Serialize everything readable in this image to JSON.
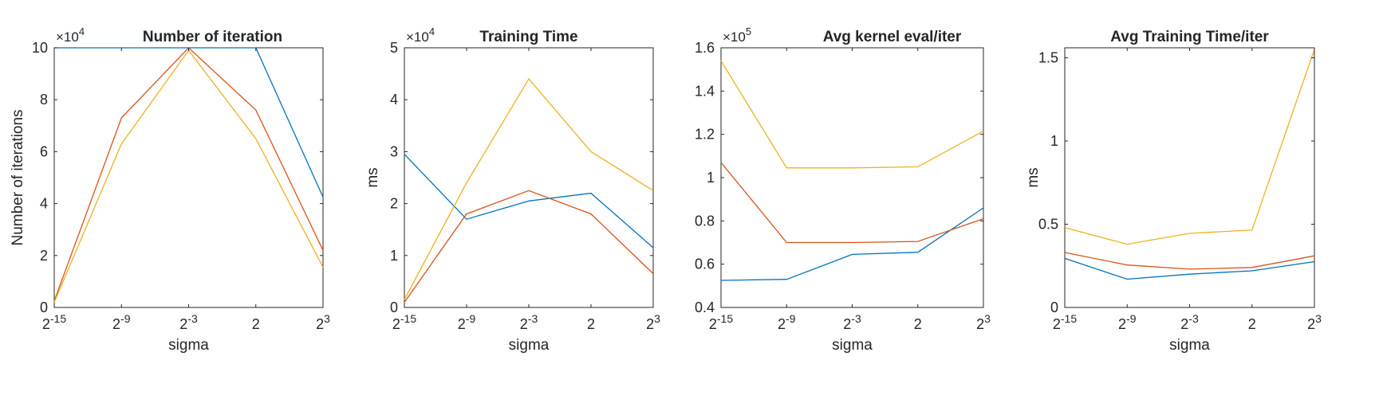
{
  "figure": {
    "colors": {
      "series1": "#0072BD",
      "series2": "#D95319",
      "series3": "#EDB120",
      "axis": "#262626",
      "background": "#ffffff"
    }
  },
  "chart_data": [
    {
      "type": "line",
      "title": "Number of iteration",
      "xlabel": "sigma",
      "ylabel": "Number of iterations",
      "x_ticks": [
        "2^-15",
        "2^-9",
        "2^-3",
        "2",
        "2^3"
      ],
      "x_tick_labels": [
        "2",
        "2",
        "2",
        "2",
        "2"
      ],
      "x_tick_exponents": [
        "-15",
        "-9",
        "-3",
        "",
        "3"
      ],
      "y_tick_labels": [
        "0",
        "2",
        "4",
        "6",
        "8",
        "10"
      ],
      "y_multiplier": {
        "base": "×10",
        "exponent": "4"
      },
      "ylim": [
        0,
        100000
      ],
      "y_ticks": [
        0,
        20000,
        40000,
        60000,
        80000,
        100000
      ],
      "series": [
        {
          "values": [
            100000,
            100000,
            100000,
            100000,
            42500
          ]
        },
        {
          "values": [
            2500,
            73000,
            100000,
            76000,
            22000
          ]
        },
        {
          "values": [
            2000,
            63000,
            99000,
            65000,
            15500
          ]
        }
      ]
    },
    {
      "type": "line",
      "title": "Training Time",
      "xlabel": "sigma",
      "ylabel": "ms",
      "x_ticks": [
        "2^-15",
        "2^-9",
        "2^-3",
        "2",
        "2^3"
      ],
      "x_tick_labels": [
        "2",
        "2",
        "2",
        "2",
        "2"
      ],
      "x_tick_exponents": [
        "-15",
        "-9",
        "-3",
        "",
        "3"
      ],
      "y_tick_labels": [
        "0",
        "1",
        "2",
        "3",
        "4",
        "5"
      ],
      "y_multiplier": {
        "base": "×10",
        "exponent": "4"
      },
      "ylim": [
        0,
        50000
      ],
      "y_ticks": [
        0,
        10000,
        20000,
        30000,
        40000,
        50000
      ],
      "series": [
        {
          "values": [
            29500,
            17000,
            20500,
            22000,
            11500
          ]
        },
        {
          "values": [
            1000,
            18000,
            22500,
            18000,
            6500
          ]
        },
        {
          "values": [
            1500,
            24000,
            44000,
            30000,
            22500
          ]
        }
      ]
    },
    {
      "type": "line",
      "title": "Avg kernel eval/iter",
      "xlabel": "sigma",
      "ylabel": "",
      "x_ticks": [
        "2^-15",
        "2^-9",
        "2^-3",
        "2",
        "2^3"
      ],
      "x_tick_labels": [
        "2",
        "2",
        "2",
        "2",
        "2"
      ],
      "x_tick_exponents": [
        "-15",
        "-9",
        "-3",
        "",
        "3"
      ],
      "y_tick_labels": [
        "0.4",
        "0.6",
        "0.8",
        "1",
        "1.2",
        "1.4",
        "1.6"
      ],
      "y_multiplier": {
        "base": "×10",
        "exponent": "5"
      },
      "ylim": [
        40000,
        160000
      ],
      "y_ticks": [
        40000,
        60000,
        80000,
        100000,
        120000,
        140000,
        160000
      ],
      "series": [
        {
          "values": [
            52500,
            53000,
            64500,
            65500,
            86000
          ]
        },
        {
          "values": [
            107000,
            70000,
            70000,
            70500,
            81000
          ]
        },
        {
          "values": [
            154000,
            104500,
            104500,
            105000,
            121500
          ]
        }
      ]
    },
    {
      "type": "line",
      "title": "Avg Training Time/iter",
      "xlabel": "sigma",
      "ylabel": "ms",
      "x_ticks": [
        "2^-15",
        "2^-9",
        "2^-3",
        "2",
        "2^3"
      ],
      "x_tick_labels": [
        "2",
        "2",
        "2",
        "2",
        "2"
      ],
      "x_tick_exponents": [
        "-15",
        "-9",
        "-3",
        "",
        "3"
      ],
      "y_tick_labels": [
        "0",
        "0.5",
        "1",
        "1.5"
      ],
      "y_multiplier": null,
      "ylim": [
        0,
        1.56
      ],
      "y_ticks": [
        0,
        0.5,
        1,
        1.5
      ],
      "series": [
        {
          "values": [
            0.295,
            0.17,
            0.2,
            0.22,
            0.275
          ]
        },
        {
          "values": [
            0.33,
            0.255,
            0.23,
            0.24,
            0.31
          ]
        },
        {
          "values": [
            0.48,
            0.38,
            0.445,
            0.465,
            1.55
          ]
        }
      ]
    }
  ]
}
